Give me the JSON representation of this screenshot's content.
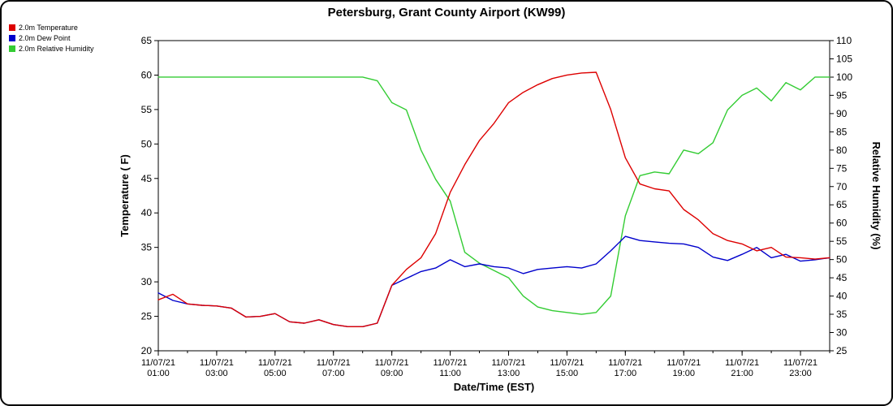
{
  "header": {
    "title": "Petersburg, Grant County Airport (KW99)"
  },
  "legend": [
    {
      "label": "2.0m Temperature",
      "color": "#dd0000"
    },
    {
      "label": "2.0m Dew Point",
      "color": "#0000cc"
    },
    {
      "label": "2.0m Relative Humidity",
      "color": "#33cc33"
    }
  ],
  "chart_data": {
    "type": "line",
    "title": "Petersburg, Grant County Airport (KW99)",
    "xlabel": "Date/Time (EST)",
    "ylabel_left": "Temperature ( F)",
    "ylabel_right": "Relative Humidity (%)",
    "xlim": [
      1,
      24
    ],
    "ylim_left": [
      20,
      65
    ],
    "ylim_right": [
      25,
      110
    ],
    "ytick_step": 5,
    "grid": false,
    "legend_position": "top-left",
    "x_major_ticks": [
      {
        "hour": 1,
        "date": "11/07/21",
        "time": "01:00"
      },
      {
        "hour": 3,
        "date": "11/07/21",
        "time": "03:00"
      },
      {
        "hour": 5,
        "date": "11/07/21",
        "time": "05:00"
      },
      {
        "hour": 7,
        "date": "11/07/21",
        "time": "07:00"
      },
      {
        "hour": 9,
        "date": "11/07/21",
        "time": "09:00"
      },
      {
        "hour": 11,
        "date": "11/07/21",
        "time": "11:00"
      },
      {
        "hour": 13,
        "date": "11/07/21",
        "time": "13:00"
      },
      {
        "hour": 15,
        "date": "11/07/21",
        "time": "15:00"
      },
      {
        "hour": 17,
        "date": "11/07/21",
        "time": "17:00"
      },
      {
        "hour": 19,
        "date": "11/07/21",
        "time": "19:00"
      },
      {
        "hour": 21,
        "date": "11/07/21",
        "time": "21:00"
      },
      {
        "hour": 23,
        "date": "11/07/21",
        "time": "23:00"
      }
    ],
    "x": [
      1,
      1.5,
      2,
      2.5,
      3,
      3.5,
      4,
      4.5,
      5,
      5.5,
      6,
      6.5,
      7,
      7.5,
      8,
      8.5,
      9,
      9.5,
      10,
      10.5,
      11,
      11.5,
      12,
      12.5,
      13,
      13.5,
      14,
      14.5,
      15,
      15.5,
      16,
      16.5,
      17,
      17.5,
      18,
      18.5,
      19,
      19.5,
      20,
      20.5,
      21,
      21.5,
      22,
      22.5,
      23,
      23.5,
      24
    ],
    "series": [
      {
        "name": "2.0m Relative Humidity",
        "color": "#33cc33",
        "axis": "right",
        "unit": "%",
        "values": [
          100,
          100,
          100,
          100,
          100,
          100,
          100,
          100,
          100,
          100,
          100,
          100,
          100,
          100,
          100,
          99,
          93,
          91,
          80,
          72,
          66,
          52,
          49,
          47,
          45,
          40,
          37,
          36,
          35.5,
          35,
          35.5,
          40,
          62,
          73,
          74,
          73.5,
          80,
          79,
          82,
          91,
          95,
          97,
          93.5,
          98.5,
          96.5,
          100,
          100
        ]
      },
      {
        "name": "2.0m Dew Point",
        "color": "#0000cc",
        "axis": "left",
        "unit": "F",
        "values": [
          28.4,
          27.3,
          26.8,
          26.6,
          26.5,
          26.2,
          24.9,
          25.0,
          25.4,
          24.2,
          24.0,
          24.5,
          23.8,
          23.5,
          23.5,
          24.0,
          29.5,
          30.5,
          31.5,
          32.0,
          33.2,
          32.2,
          32.6,
          32.2,
          32.0,
          31.2,
          31.8,
          32.0,
          32.2,
          32.0,
          32.6,
          34.5,
          36.6,
          36.0,
          35.8,
          35.6,
          35.5,
          35.0,
          33.6,
          33.1,
          34.0,
          35.0,
          33.5,
          34.0,
          33.0,
          33.2,
          33.5
        ]
      },
      {
        "name": "2.0m Temperature",
        "color": "#dd0000",
        "axis": "left",
        "unit": "F",
        "values": [
          27.4,
          28.2,
          26.8,
          26.6,
          26.5,
          26.2,
          24.9,
          25.0,
          25.4,
          24.2,
          24.0,
          24.5,
          23.8,
          23.5,
          23.5,
          24.0,
          29.5,
          31.8,
          33.5,
          37.0,
          43.0,
          47.0,
          50.5,
          53.0,
          56.0,
          57.5,
          58.6,
          59.5,
          60.0,
          60.3,
          60.4,
          55.0,
          48.0,
          44.2,
          43.5,
          43.2,
          40.5,
          39.0,
          37.0,
          36.0,
          35.5,
          34.5,
          35.0,
          33.6,
          33.5,
          33.3,
          33.5
        ]
      }
    ]
  }
}
